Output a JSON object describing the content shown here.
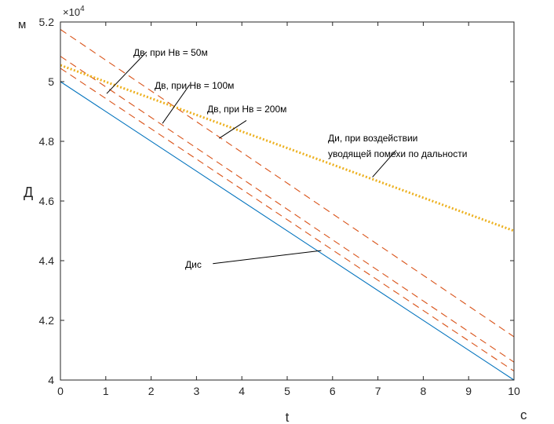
{
  "chart_data": {
    "type": "line",
    "exponent_label": "×10",
    "exponent_power": "4",
    "ylabel": "Д",
    "yunit": "м",
    "xlabel": "t",
    "xunit": "с",
    "xlim": [
      0,
      10
    ],
    "ylim": [
      4.0,
      5.2
    ],
    "xticks": [
      "0",
      "1",
      "2",
      "3",
      "4",
      "5",
      "6",
      "7",
      "8",
      "9",
      "10"
    ],
    "yticks": [
      "4",
      "4.2",
      "4.4",
      "4.6",
      "4.8",
      "5",
      "5.2"
    ],
    "grid": false,
    "series": [
      {
        "x": [
          0,
          10
        ],
        "y": [
          5.0,
          4.0
        ],
        "color": "#0072bd",
        "style": "solid"
      },
      {
        "x": [
          0,
          10
        ],
        "y": [
          5.175,
          4.145
        ],
        "color": "#d95319",
        "style": "dashed"
      },
      {
        "x": [
          0,
          10
        ],
        "y": [
          5.085,
          4.06
        ],
        "color": "#d95319",
        "style": "dashed"
      },
      {
        "x": [
          0,
          10
        ],
        "y": [
          5.045,
          4.03
        ],
        "color": "#d95319",
        "style": "dashed"
      },
      {
        "x": [
          0,
          10
        ],
        "y": [
          5.055,
          4.5
        ],
        "color": "#edb120",
        "style": "dotted"
      }
    ],
    "annotations": [
      {
        "text": "Дв, при Нв = 50м",
        "line_from": [
          1.02,
          4.96
        ],
        "line_to": [
          1.9,
          5.1
        ]
      },
      {
        "text": "Дв, при Нв = 100м",
        "line_from": [
          2.25,
          4.86
        ],
        "line_to": [
          2.85,
          4.99
        ]
      },
      {
        "text": "Дв, при Нв = 200м",
        "line_from": [
          3.5,
          4.81
        ],
        "line_to": [
          4.1,
          4.87
        ]
      },
      {
        "text": "Ди, при воздействии",
        "text2": "уводящей помехи по дальности",
        "line_from": [
          6.88,
          4.68
        ],
        "line_to": [
          7.4,
          4.77
        ]
      },
      {
        "text": "Дис",
        "line_from": [
          3.36,
          4.39
        ],
        "line_to": [
          5.75,
          4.434
        ]
      }
    ]
  }
}
